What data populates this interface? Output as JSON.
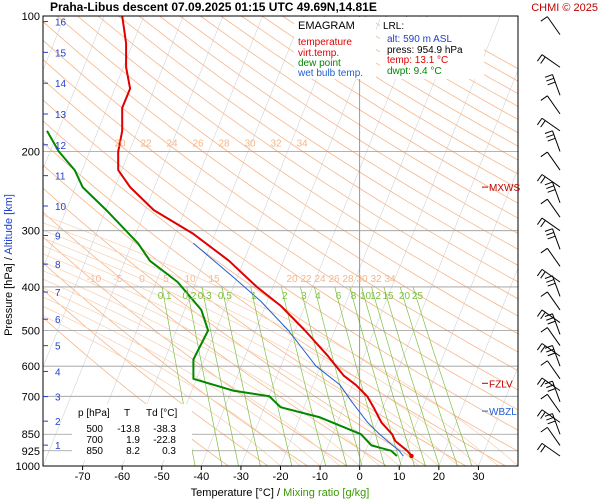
{
  "header": {
    "title": "Praha-Libus  descent  07.09.2025 01:15 UTC  49.69N,14.81E",
    "credit": "CHMI © 2025"
  },
  "legend": {
    "heading": "EMAGRAM",
    "items": [
      {
        "label": "temperature",
        "color": "#e00000"
      },
      {
        "label": "virt.temp.",
        "color": "#e00000"
      },
      {
        "label": "dew point",
        "color": "#008800"
      },
      {
        "label": "wet bulb temp.",
        "color": "#1f5fd0"
      }
    ]
  },
  "lrl": {
    "heading": "LRL:",
    "lines": [
      {
        "text": "alt: 590 m ASL",
        "color": "#1f3fd0"
      },
      {
        "text": "press: 954.9 hPa",
        "color": "#000000"
      },
      {
        "text": "temp: 13.1 °C",
        "color": "#e00000"
      },
      {
        "text": "dwpt: 9.4 °C",
        "color": "#008800"
      }
    ]
  },
  "summary_table": {
    "headers": [
      "p [hPa]",
      "T",
      "Td [°C]"
    ],
    "rows": [
      [
        "500",
        "-13.8",
        "-38.3"
      ],
      [
        "700",
        "1.9",
        "-22.8"
      ],
      [
        "850",
        "8.2",
        "0.3"
      ]
    ]
  },
  "levels": {
    "mxws": {
      "label": "MXWS",
      "p": 240,
      "color": "#c00000"
    },
    "fzlv": {
      "label": "FZLV",
      "p": 655,
      "color": "#c00000"
    },
    "wbzl": {
      "label": "WBZL",
      "p": 755,
      "color": "#1f5fd0"
    }
  },
  "chart_data": {
    "type": "line",
    "ylabel_prefix": "Pressure [hPa]",
    "ylabel_sep": " /  ",
    "ylabel_suffix": "Altitude [km]",
    "xlabel_prefix": "Temperature [°C]",
    "xlabel_sep": " /  ",
    "xlabel_suffix": "Mixing ratio [g/kg]",
    "y_scale": "log",
    "ylim": [
      1000,
      100
    ],
    "xlim": [
      -80,
      40
    ],
    "x_ticks": [
      "-70",
      "-60",
      "-50",
      "-40",
      "-30",
      "-20",
      "-10",
      "0",
      "10",
      "20",
      "30"
    ],
    "pressure_ticks": [
      "100",
      "200",
      "300",
      "400",
      "500",
      "600",
      "700",
      "850",
      "925",
      "1000"
    ],
    "altitude_ticks_km": [
      "1",
      "2",
      "3",
      "4",
      "5",
      "6",
      "7",
      "8",
      "9",
      "10",
      "11",
      "12",
      "13",
      "14",
      "15",
      "16"
    ],
    "mixing_ratio_labels": [
      "0.1",
      "0.2",
      "0.3",
      "0.5",
      "1",
      "2",
      "3",
      "4",
      "6",
      "8",
      "10",
      "12",
      "15",
      "20",
      "25"
    ],
    "dry_adiabat_labels": [
      "20",
      "22",
      "24",
      "26",
      "28",
      "30",
      "32",
      "34"
    ],
    "moist_adiabat_labels": [
      "-10",
      "-5",
      "0",
      "5",
      "10",
      "15"
    ],
    "series": [
      {
        "name": "temperature",
        "color": "#e00000",
        "points": [
          [
            13.1,
            950
          ],
          [
            12,
            925
          ],
          [
            9,
            880
          ],
          [
            8.2,
            850
          ],
          [
            5.5,
            800
          ],
          [
            3.5,
            740
          ],
          [
            1.9,
            700
          ],
          [
            -1,
            660
          ],
          [
            -4,
            630
          ],
          [
            -8,
            570
          ],
          [
            -13.8,
            500
          ],
          [
            -20,
            440
          ],
          [
            -26,
            400
          ],
          [
            -33,
            350
          ],
          [
            -42,
            305
          ],
          [
            -52,
            270
          ],
          [
            -58,
            240
          ],
          [
            -61,
            220
          ],
          [
            -61,
            200
          ],
          [
            -60,
            180
          ],
          [
            -60,
            160
          ],
          [
            -58,
            145
          ],
          [
            -59,
            130
          ],
          [
            -59,
            115
          ],
          [
            -60,
            100
          ]
        ]
      },
      {
        "name": "dew point",
        "color": "#008800",
        "points": [
          [
            9.4,
            950
          ],
          [
            8,
            925
          ],
          [
            3,
            900
          ],
          [
            0.3,
            850
          ],
          [
            -10,
            780
          ],
          [
            -20,
            740
          ],
          [
            -22.8,
            700
          ],
          [
            -32,
            680
          ],
          [
            -42,
            640
          ],
          [
            -42,
            580
          ],
          [
            -38.3,
            500
          ],
          [
            -40,
            450
          ],
          [
            -46,
            390
          ],
          [
            -53,
            350
          ],
          [
            -56,
            320
          ],
          [
            -64,
            270
          ],
          [
            -70,
            240
          ],
          [
            -72,
            220
          ],
          [
            -76,
            200
          ],
          [
            -79,
            180
          ]
        ]
      },
      {
        "name": "wet bulb temp.",
        "color": "#1f5fd0",
        "points": [
          [
            11,
            950
          ],
          [
            10,
            925
          ],
          [
            7,
            880
          ],
          [
            5,
            850
          ],
          [
            2,
            800
          ],
          [
            -2,
            720
          ],
          [
            -5,
            660
          ],
          [
            -11,
            600
          ],
          [
            -18,
            500
          ],
          [
            -25,
            430
          ],
          [
            -32,
            380
          ],
          [
            -42,
            320
          ]
        ]
      }
    ]
  }
}
